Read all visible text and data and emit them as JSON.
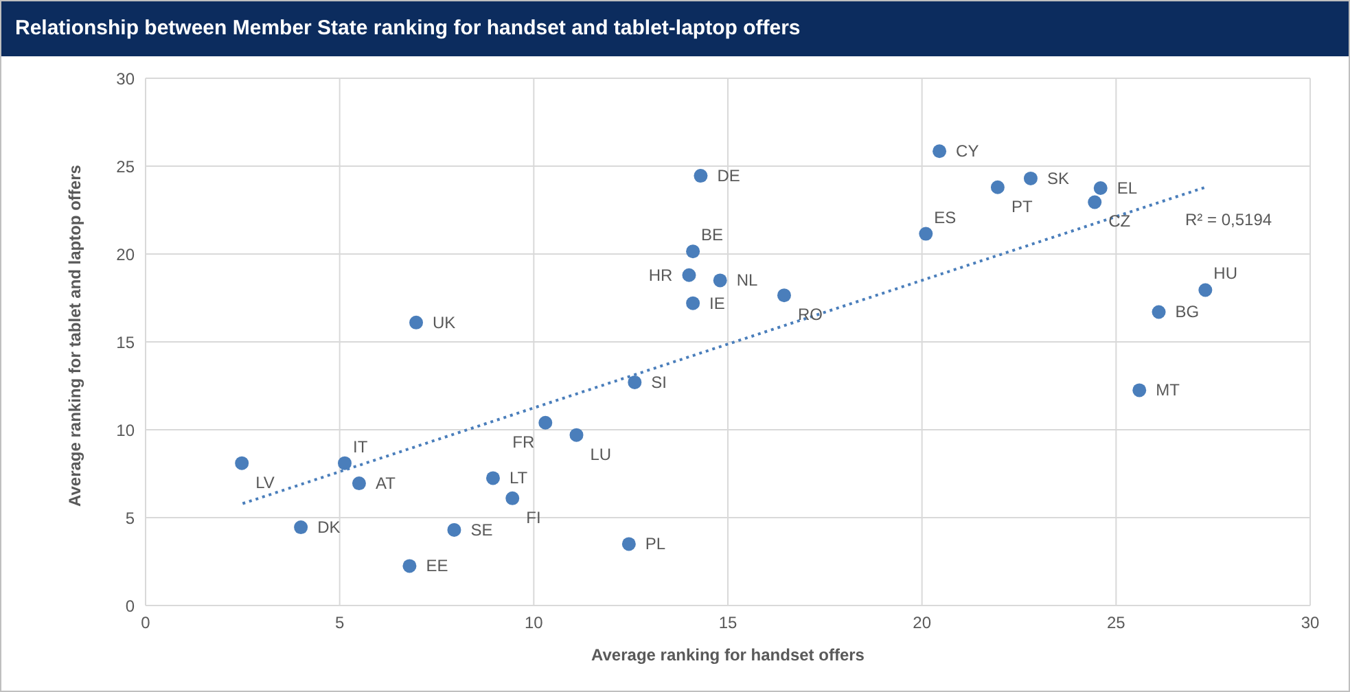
{
  "chart_data": {
    "type": "scatter",
    "title": "Relationship between Member State ranking for handset and tablet-laptop offers",
    "xlabel": "Average ranking for handset offers",
    "ylabel": "Average ranking for tablet and laptop offers",
    "xlim": [
      0,
      30
    ],
    "xticks": [
      0,
      5,
      10,
      15,
      20,
      25,
      30
    ],
    "ylim": [
      0,
      30
    ],
    "yticks": [
      0,
      5,
      10,
      15,
      20,
      25,
      30
    ],
    "grid": true,
    "legend": false,
    "series": [
      {
        "color": "#4a7ebb",
        "marker": "circle",
        "x": [
          2.48,
          5.13,
          5.5,
          4.0,
          6.8,
          7.95,
          8.95,
          9.45,
          10.3,
          11.1,
          12.45,
          12.6,
          6.97,
          14.3,
          14.1,
          14.0,
          14.8,
          14.1,
          16.45,
          20.45,
          22.8,
          21.95,
          24.6,
          24.45,
          20.1,
          27.3,
          26.1,
          25.6
        ],
        "values": [
          8.1,
          8.1,
          6.95,
          4.45,
          2.25,
          4.3,
          7.25,
          6.1,
          10.4,
          9.7,
          3.5,
          12.7,
          16.1,
          24.45,
          20.15,
          18.8,
          18.5,
          17.2,
          17.65,
          25.85,
          24.3,
          23.8,
          23.75,
          22.95,
          21.15,
          17.95,
          16.7,
          12.25
        ]
      },
      {
        "type": "line",
        "color": "#4a7ebb",
        "marker": "none",
        "line_style": "dotted",
        "x": [
          2.5,
          27.3
        ],
        "values": [
          5.8,
          23.8
        ]
      }
    ],
    "annotations": [
      {
        "text": "LV",
        "x": 2.48,
        "y": 8.1
      },
      {
        "text": "IT",
        "x": 5.13,
        "y": 8.1
      },
      {
        "text": "AT",
        "x": 5.5,
        "y": 6.95
      },
      {
        "text": "DK",
        "x": 4.0,
        "y": 4.45
      },
      {
        "text": "EE",
        "x": 6.8,
        "y": 2.25
      },
      {
        "text": "SE",
        "x": 7.95,
        "y": 4.3
      },
      {
        "text": "LT",
        "x": 8.95,
        "y": 7.25
      },
      {
        "text": "FI",
        "x": 9.45,
        "y": 6.1
      },
      {
        "text": "FR",
        "x": 10.3,
        "y": 10.4
      },
      {
        "text": "LU",
        "x": 11.1,
        "y": 9.7
      },
      {
        "text": "PL",
        "x": 12.45,
        "y": 3.5
      },
      {
        "text": "SI",
        "x": 12.6,
        "y": 12.7
      },
      {
        "text": "UK",
        "x": 6.97,
        "y": 16.1
      },
      {
        "text": "DE",
        "x": 14.3,
        "y": 24.45
      },
      {
        "text": "BE",
        "x": 14.1,
        "y": 20.15
      },
      {
        "text": "HR",
        "x": 14.0,
        "y": 18.8
      },
      {
        "text": "NL",
        "x": 14.8,
        "y": 18.5
      },
      {
        "text": "IE",
        "x": 14.1,
        "y": 17.2
      },
      {
        "text": "RO",
        "x": 16.45,
        "y": 17.65
      },
      {
        "text": "CY",
        "x": 20.45,
        "y": 25.85
      },
      {
        "text": "SK",
        "x": 22.8,
        "y": 24.3
      },
      {
        "text": "PT",
        "x": 21.95,
        "y": 23.8
      },
      {
        "text": "EL",
        "x": 24.6,
        "y": 23.75
      },
      {
        "text": "CZ",
        "x": 24.45,
        "y": 22.95
      },
      {
        "text": "ES",
        "x": 20.1,
        "y": 21.15
      },
      {
        "text": "HU",
        "x": 27.3,
        "y": 17.95
      },
      {
        "text": "BG",
        "x": 26.1,
        "y": 16.7
      },
      {
        "text": "MT",
        "x": 25.6,
        "y": 12.25
      },
      "R² = 0,5194"
    ]
  }
}
